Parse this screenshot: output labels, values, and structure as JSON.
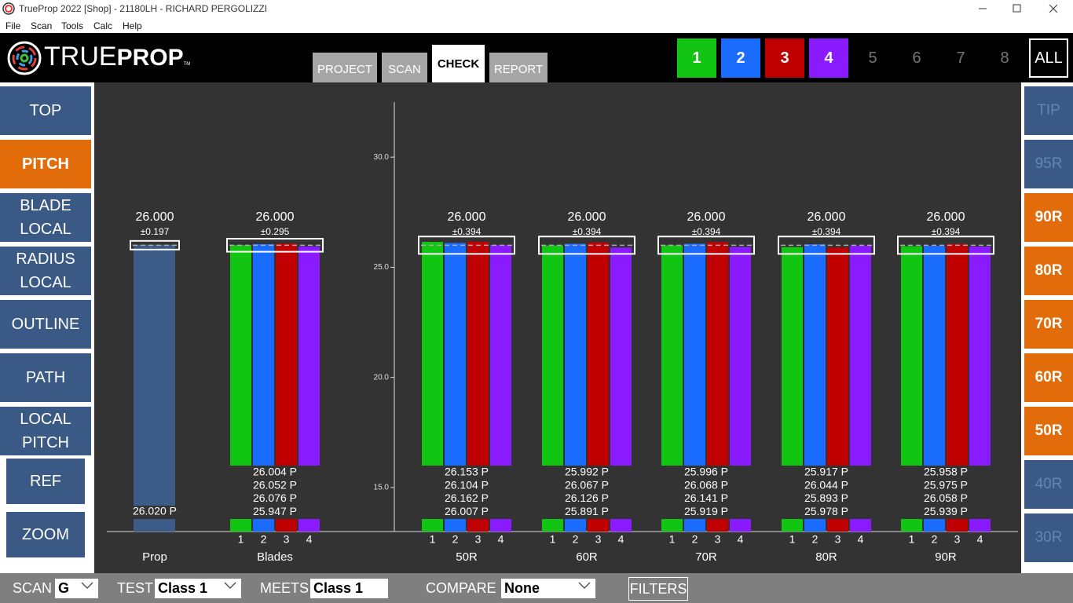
{
  "window": {
    "title": "TrueProp 2022 [Shop] - 21180LH - RICHARD PERGOLIZZI"
  },
  "menu": [
    "File",
    "Scan",
    "Tools",
    "Calc",
    "Help"
  ],
  "logo": {
    "left": "TRUE",
    "right": "PROP",
    "mark": "TM"
  },
  "tabs": {
    "items": [
      "PROJECT",
      "SCAN",
      "CHECK",
      "REPORT"
    ],
    "active": 2
  },
  "blade_buttons": [
    {
      "label": "1",
      "color": "#12c512"
    },
    {
      "label": "2",
      "color": "#1a6cff"
    },
    {
      "label": "3",
      "color": "#c00000"
    },
    {
      "label": "4",
      "color": "#8a1aff"
    },
    {
      "label": "5",
      "color": null
    },
    {
      "label": "6",
      "color": null
    },
    {
      "label": "7",
      "color": null
    },
    {
      "label": "8",
      "color": null
    },
    {
      "label": "ALL",
      "color": "outlined"
    }
  ],
  "left_nav": [
    {
      "label": "TOP",
      "state": "normal"
    },
    {
      "label": "PITCH",
      "state": "active"
    },
    {
      "label": "BLADE LOCAL",
      "state": "normal"
    },
    {
      "label": "RADIUS LOCAL",
      "state": "normal"
    },
    {
      "label": "OUTLINE",
      "state": "normal"
    },
    {
      "label": "PATH",
      "state": "normal"
    },
    {
      "label": "LOCAL PITCH",
      "state": "normal"
    },
    {
      "label": "REF",
      "state": "outlined"
    },
    {
      "label": "ZOOM",
      "state": "outlined"
    }
  ],
  "right_nav": [
    {
      "label": "TIP",
      "state": "disabled"
    },
    {
      "label": "95R",
      "state": "disabled"
    },
    {
      "label": "90R",
      "state": "active"
    },
    {
      "label": "80R",
      "state": "active"
    },
    {
      "label": "70R",
      "state": "active"
    },
    {
      "label": "60R",
      "state": "active"
    },
    {
      "label": "50R",
      "state": "active"
    },
    {
      "label": "40R",
      "state": "disabled"
    },
    {
      "label": "30R",
      "state": "disabled"
    }
  ],
  "bottom_bar": {
    "fields": [
      {
        "label": "SCAN",
        "value": "G",
        "dropdown": true
      },
      {
        "label": "TEST",
        "value": "Class 1",
        "dropdown": true
      },
      {
        "label": "MEETS",
        "value": "Class 1",
        "dropdown": false
      },
      {
        "label": "COMPARE",
        "value": "None",
        "dropdown": true
      }
    ],
    "button": "FILTERS"
  },
  "chart_data": {
    "type": "bar",
    "ylim": [
      13.0,
      32.5
    ],
    "yticks": [
      {
        "value": 15,
        "label": "15.0"
      },
      {
        "value": 20,
        "label": "20.0"
      },
      {
        "value": 25,
        "label": "25.0"
      },
      {
        "value": 30,
        "label": "30.0"
      }
    ],
    "prop": {
      "name": "Prop",
      "color": "#3c5b86",
      "value": 26.02,
      "value_label": "26.020 P",
      "nominal": {
        "value": 26,
        "label": "26.000"
      },
      "tolerance": {
        "value": 0.197,
        "label": "±0.197"
      }
    },
    "categories": [
      "Blades",
      "50R",
      "60R",
      "70R",
      "80R",
      "90R"
    ],
    "nominals": [
      {
        "value": 26,
        "label": "26.000"
      },
      {
        "value": 26,
        "label": "26.000"
      },
      {
        "value": 26,
        "label": "26.000"
      },
      {
        "value": 26,
        "label": "26.000"
      },
      {
        "value": 26,
        "label": "26.000"
      },
      {
        "value": 26,
        "label": "26.000"
      }
    ],
    "tolerances": [
      {
        "value": 0.295,
        "label": "±0.295"
      },
      {
        "value": 0.394,
        "label": "±0.394"
      },
      {
        "value": 0.394,
        "label": "±0.394"
      },
      {
        "value": 0.394,
        "label": "±0.394"
      },
      {
        "value": 0.394,
        "label": "±0.394"
      },
      {
        "value": 0.394,
        "label": "±0.394"
      }
    ],
    "series": [
      {
        "name": "1",
        "color": "#12c512",
        "values": [
          26.004,
          26.153,
          25.992,
          25.996,
          25.917,
          25.958
        ],
        "value_labels": [
          "26.004 P",
          "26.153 P",
          "25.992 P",
          "25.996 P",
          "25.917 P",
          "25.958 P"
        ]
      },
      {
        "name": "2",
        "color": "#1a6cff",
        "values": [
          26.052,
          26.104,
          26.067,
          26.068,
          26.044,
          25.975
        ],
        "value_labels": [
          "26.052 P",
          "26.104 P",
          "26.067 P",
          "26.068 P",
          "26.044 P",
          "25.975 P"
        ]
      },
      {
        "name": "3",
        "color": "#c00000",
        "values": [
          26.076,
          26.162,
          26.126,
          26.141,
          25.893,
          26.058
        ],
        "value_labels": [
          "26.076 P",
          "26.162 P",
          "26.126 P",
          "26.141 P",
          "25.893 P",
          "26.058 P"
        ]
      },
      {
        "name": "4",
        "color": "#8a1aff",
        "values": [
          25.947,
          26.007,
          25.891,
          25.919,
          25.978,
          25.939
        ],
        "value_labels": [
          "25.947 P",
          "26.007 P",
          "25.891 P",
          "25.919 P",
          "25.978 P",
          "25.939 P"
        ]
      }
    ]
  }
}
